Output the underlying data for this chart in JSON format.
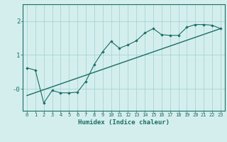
{
  "title": "",
  "xlabel": "Humidex (Indice chaleur)",
  "ylabel": "",
  "bg_color": "#d4eeee",
  "line_color": "#1a6e64",
  "grid_color": "#a8d4d4",
  "xlim": [
    -0.5,
    23.5
  ],
  "ylim": [
    -0.65,
    2.5
  ],
  "xticks": [
    0,
    1,
    2,
    3,
    4,
    5,
    6,
    7,
    8,
    9,
    10,
    11,
    12,
    13,
    14,
    15,
    16,
    17,
    18,
    19,
    20,
    21,
    22,
    23
  ],
  "yticks": [
    0,
    1,
    2
  ],
  "ytick_labels": [
    "-0",
    "1",
    "2"
  ],
  "data_x": [
    0,
    1,
    2,
    3,
    4,
    5,
    6,
    7,
    8,
    9,
    10,
    11,
    12,
    13,
    14,
    15,
    16,
    17,
    18,
    19,
    20,
    21,
    22,
    23
  ],
  "data_y": [
    0.62,
    0.55,
    -0.42,
    -0.05,
    -0.12,
    -0.12,
    -0.1,
    0.22,
    0.72,
    1.1,
    1.4,
    1.2,
    1.3,
    1.42,
    1.65,
    1.78,
    1.6,
    1.58,
    1.58,
    1.82,
    1.9,
    1.9,
    1.88,
    1.78
  ],
  "trend_x": [
    0,
    23
  ],
  "trend_y": [
    -0.2,
    1.78
  ]
}
